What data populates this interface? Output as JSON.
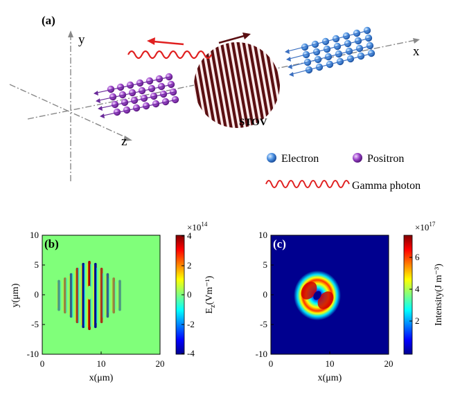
{
  "panel_a": {
    "label": "(a)",
    "axes": {
      "x": "x",
      "y": "y",
      "z": "z"
    },
    "pulse_label": "STOV",
    "legend": {
      "electron": "Electron",
      "positron": "Positron",
      "photon": "Gamma photon"
    },
    "colors": {
      "electron": "#4a8fe0",
      "positron": "#8e3fbf",
      "photon": "#e02020",
      "pulse": "#5a0f12"
    }
  },
  "panel_b": {
    "label": "(b)",
    "xlabel": "x(μm)",
    "ylabel": "y(μm)",
    "xticks": [
      "0",
      "10",
      "20"
    ],
    "yticks": [
      "10",
      "5",
      "0",
      "-5",
      "-10"
    ],
    "colorbar": {
      "label": "E₂(Vm⁻¹)",
      "label_main": "E",
      "label_sub": "z",
      "label_rest": "(Vm⁻¹)",
      "multiplier_base": "×10",
      "multiplier_exp": "14",
      "ticks": [
        "4",
        "2",
        "0",
        "-2",
        "-4"
      ]
    }
  },
  "panel_c": {
    "label": "(c)",
    "xlabel": "x(μm)",
    "xticks": [
      "0",
      "10",
      "20"
    ],
    "yticks": [
      "10",
      "5",
      "0",
      "-5",
      "-10"
    ],
    "colorbar": {
      "label": "Intensity(J m⁻³)",
      "multiplier_base": "×10",
      "multiplier_exp": "17",
      "ticks": [
        "6",
        "4",
        "2"
      ]
    }
  },
  "chart_data": [
    {
      "type": "heatmap",
      "title": "",
      "xlabel": "x(μm)",
      "ylabel": "y(μm)",
      "xlim": [
        0,
        20
      ],
      "ylim": [
        -10,
        10
      ],
      "colorbar_label": "E_z (Vm^-1)",
      "colorbar_range": [
        -400000000000000.0,
        400000000000000.0
      ],
      "description_of_field": "oscillating fringes centered near x=8, y=0"
    },
    {
      "type": "heatmap",
      "title": "",
      "xlabel": "x(μm)",
      "xlim": [
        0,
        20
      ],
      "ylim": [
        -10,
        10
      ],
      "colorbar_label": "Intensity (J m^-3)",
      "colorbar_range": [
        0,
        7.5e+17
      ]
    }
  ]
}
